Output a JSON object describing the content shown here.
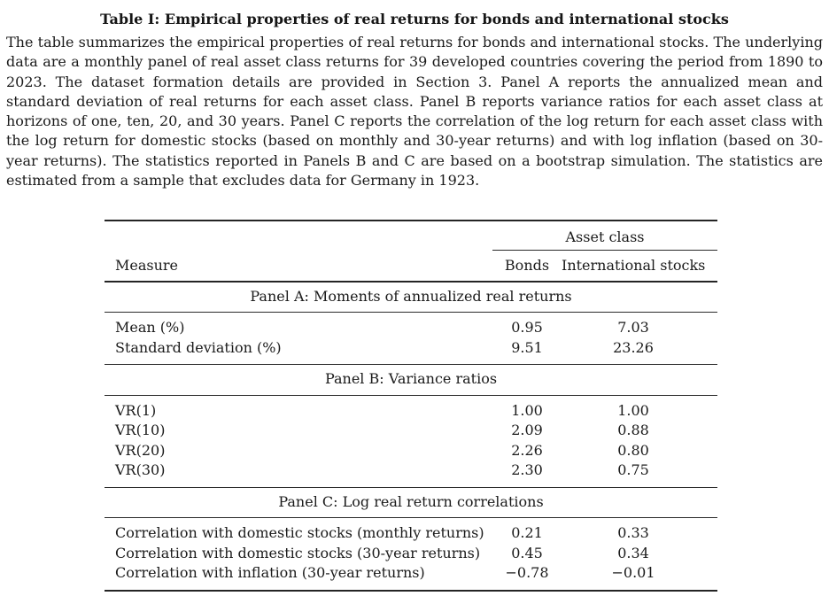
{
  "title": "Table I: Empirical properties of real returns for bonds and international stocks",
  "caption": "The table summarizes the empirical properties of real returns for bonds and international stocks. The underlying data are a monthly panel of real asset class returns for 39 developed countries covering the period from 1890 to 2023. The dataset formation details are provided in Section 3. Panel A reports the annualized mean and standard deviation of real returns for each asset class. Panel B reports variance ratios for each asset class at horizons of one, ten, 20, and 30 years. Panel C reports the correlation of the log return for each asset class with the log return for domestic stocks (based on monthly and 30-year returns) and with log inflation (based on 30-year returns). The statistics reported in Panels B and C are based on a bootstrap simulation. The statistics are estimated from a sample that excludes data for Germany in 1923.",
  "table": {
    "header": {
      "group_label": "Asset class",
      "measure_label": "Measure",
      "columns": [
        "Bonds",
        "International stocks"
      ]
    },
    "panels": [
      {
        "title": "Panel A: Moments of annualized real returns",
        "rows": [
          {
            "measure": "Mean (%)",
            "values": [
              "0.95",
              "7.03"
            ]
          },
          {
            "measure": "Standard deviation (%)",
            "values": [
              "9.51",
              "23.26"
            ]
          }
        ]
      },
      {
        "title": "Panel B: Variance ratios",
        "rows": [
          {
            "measure": "VR(1)",
            "values": [
              "1.00",
              "1.00"
            ]
          },
          {
            "measure": "VR(10)",
            "values": [
              "2.09",
              "0.88"
            ]
          },
          {
            "measure": "VR(20)",
            "values": [
              "2.26",
              "0.80"
            ]
          },
          {
            "measure": "VR(30)",
            "values": [
              "2.30",
              "0.75"
            ]
          }
        ]
      },
      {
        "title": "Panel C: Log real return correlations",
        "rows": [
          {
            "measure": "Correlation with domestic stocks (monthly returns)",
            "values": [
              "0.21",
              "0.33"
            ]
          },
          {
            "measure": "Correlation with domestic stocks (30-year returns)",
            "values": [
              "0.45",
              "0.34"
            ]
          },
          {
            "measure": "Correlation with inflation (30-year returns)",
            "values": [
              "−0.78",
              "−0.01"
            ]
          }
        ]
      }
    ]
  }
}
